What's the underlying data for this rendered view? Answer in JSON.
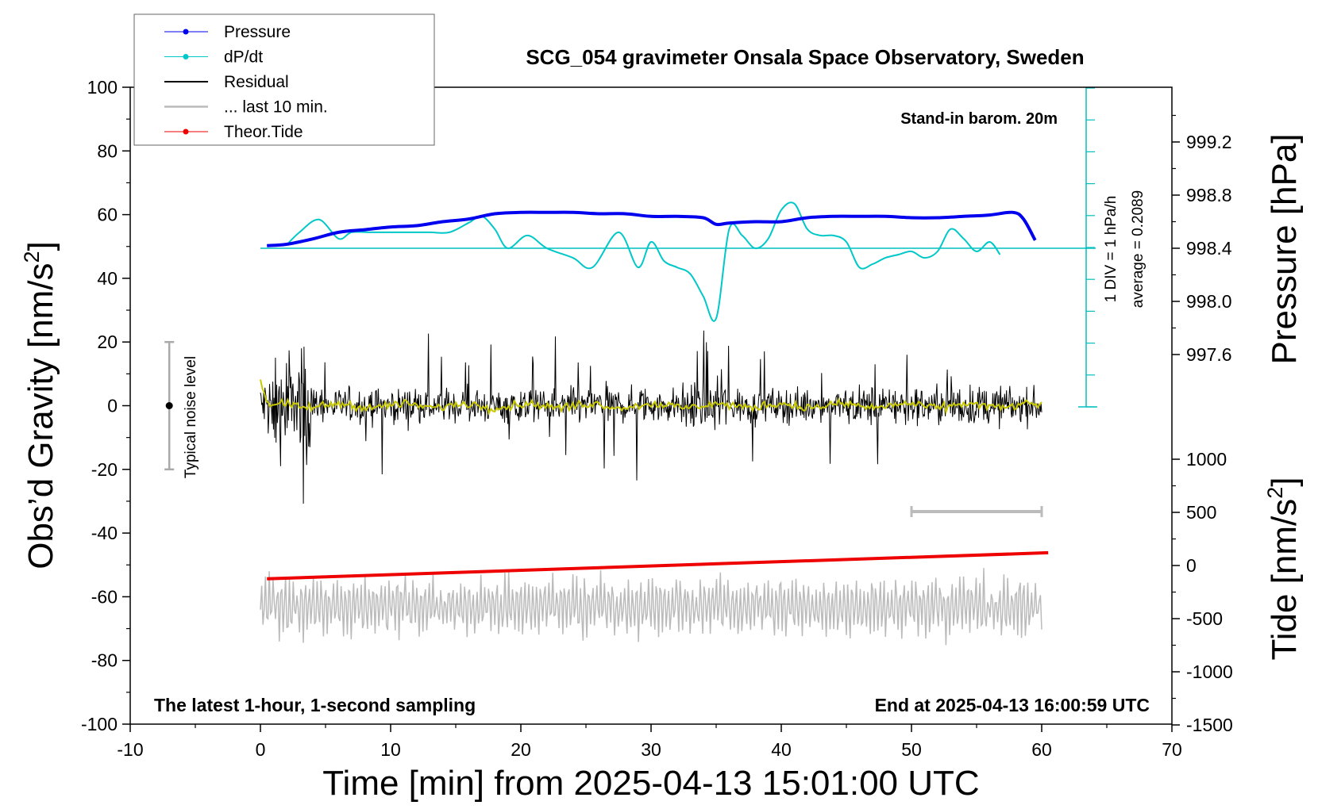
{
  "chart_data": {
    "type": "line",
    "title": "SCG_054 gravimeter Onsala Space Observatory, Sweden",
    "xlabel": "Time [min] from 2025-04-13 15:01:00 UTC",
    "ylabel_left": "Obs’d Gravity [nm/s",
    "ylabel_left_sup": "2",
    "ylabel_left_end": "]",
    "ylabel_right_pressure": "Pressure [hPa]",
    "ylabel_right_tide": "Tide [nm/s",
    "ylabel_right_tide_sup": "2",
    "ylabel_right_tide_end": "]",
    "xlim": [
      -10,
      70
    ],
    "ylim": [
      -100,
      100
    ],
    "x_ticks": [
      "-10",
      "0",
      "10",
      "20",
      "30",
      "40",
      "50",
      "60",
      "70"
    ],
    "y_ticks": [
      "-100",
      "-80",
      "-60",
      "-40",
      "-20",
      "0",
      "20",
      "40",
      "60",
      "80",
      "100"
    ],
    "pressure_ticks": [
      "997.6",
      "998.0",
      "998.4",
      "998.8",
      "999.2"
    ],
    "tide_ticks": [
      "-1500",
      "-1000",
      "-500",
      "0",
      "500",
      "1000"
    ],
    "annotations": {
      "barometer": "Stand-in barom. 20m",
      "dpdt_scale": "1 DIV = 1 hPa/h",
      "dpdt_average": "average = 0.2089",
      "noise": "Typical noise level",
      "sampling": "The latest 1-hour, 1-second sampling",
      "end_time": "End at 2025-04-13 16:00:59 UTC"
    },
    "legend": {
      "placement": "top-left",
      "entries": [
        {
          "label": "Pressure",
          "color": "#0000ee",
          "marker": true
        },
        {
          "label": "dP/dt",
          "color": "#00c8c8",
          "marker": true
        },
        {
          "label": "Residual",
          "color": "#000000",
          "marker": false
        },
        {
          "label": "... last 10 min.",
          "color": "#bbbbbb",
          "marker": false
        },
        {
          "label": "Theor.Tide",
          "color": "#ee0000",
          "marker": true
        }
      ]
    },
    "series": [
      {
        "name": "Pressure",
        "unit": "hPa",
        "color": "#0000ee",
        "x": [
          0.5,
          2,
          4,
          6,
          8,
          10,
          12,
          14,
          16,
          18,
          20,
          22,
          24,
          26,
          28,
          30,
          32,
          34,
          35,
          36,
          38,
          40,
          42,
          44,
          46,
          48,
          50,
          52,
          54,
          56,
          57.8,
          58.6,
          59.5
        ],
        "y": [
          998.42,
          998.43,
          998.47,
          998.52,
          998.54,
          998.56,
          998.57,
          998.6,
          998.62,
          998.66,
          998.67,
          998.67,
          998.67,
          998.66,
          998.66,
          998.64,
          998.64,
          998.63,
          998.58,
          998.59,
          998.6,
          998.6,
          998.63,
          998.64,
          998.64,
          998.64,
          998.63,
          998.63,
          998.64,
          998.65,
          998.67,
          998.62,
          998.46
        ]
      },
      {
        "name": "dP/dt",
        "unit": "hPa/h relative to 998.4 baseline",
        "color": "#00c8c8",
        "x": [
          2,
          3,
          4.5,
          6,
          7,
          8.5,
          10,
          11.5,
          13,
          14.5,
          16,
          17,
          18,
          19,
          20.5,
          22,
          24,
          25.5,
          27.5,
          29,
          30,
          31,
          32,
          33,
          34,
          35,
          36,
          37,
          38,
          39,
          40,
          41,
          42,
          43,
          44,
          45,
          46,
          47,
          48,
          49,
          50,
          51,
          52,
          53,
          54,
          55,
          56,
          56.8
        ],
        "y": [
          0.1,
          0.5,
          0.9,
          0.3,
          0.5,
          0.5,
          0.5,
          0.5,
          0.5,
          0.5,
          0.8,
          1.0,
          0.6,
          0.0,
          0.4,
          0.0,
          -0.3,
          -0.6,
          0.5,
          -0.6,
          0.2,
          -0.4,
          -0.6,
          -0.8,
          -1.5,
          -2.2,
          0.6,
          0.4,
          0.0,
          0.3,
          1.2,
          1.4,
          0.6,
          0.4,
          0.4,
          0.2,
          -0.6,
          -0.5,
          -0.3,
          -0.2,
          -0.1,
          -0.3,
          -0.1,
          0.6,
          0.3,
          -0.1,
          0.2,
          -0.2
        ]
      },
      {
        "name": "Residual",
        "unit": "nm/s2",
        "color": "#000000",
        "x": [
          0,
          60
        ],
        "y_range": [
          -32,
          39
        ]
      },
      {
        "name": "Theor.Tide",
        "unit": "nm/s2",
        "color": "#ee0000",
        "x": [
          0.5,
          60.5
        ],
        "y": [
          -125,
          120
        ]
      }
    ],
    "noise_bar": {
      "x": -7,
      "y_range": [
        -20,
        20
      ]
    },
    "last_10_min_bar": {
      "x_range": [
        50,
        60
      ]
    }
  }
}
